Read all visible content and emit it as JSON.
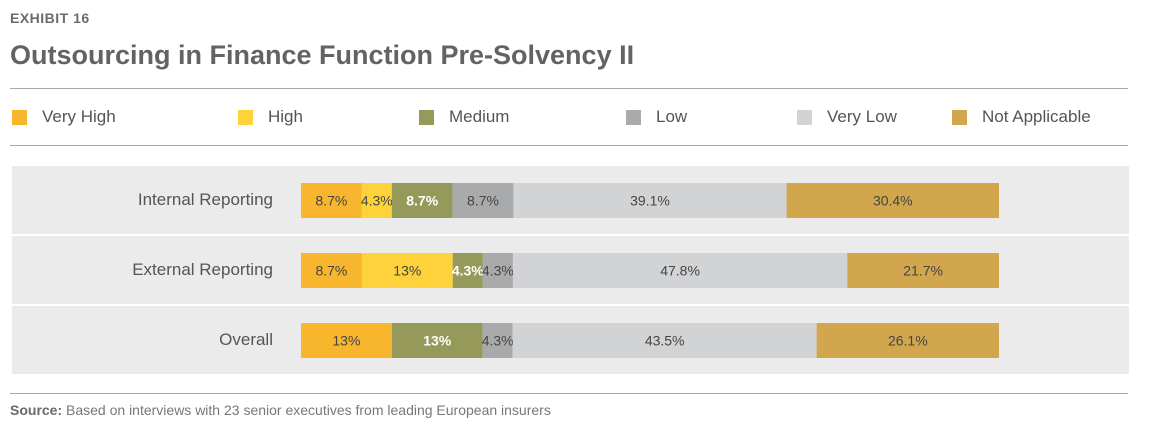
{
  "header": {
    "exhibit": "EXHIBIT 16",
    "title": "Outsourcing in Finance Function Pre-Solvency II"
  },
  "legend": [
    {
      "label": "Very High",
      "color": "#f8b52e"
    },
    {
      "label": "High",
      "color": "#fdd23b"
    },
    {
      "label": "Medium",
      "color": "#959a5a"
    },
    {
      "label": "Low",
      "color": "#a9aaac"
    },
    {
      "label": "Very Low",
      "color": "#d2d3d5"
    },
    {
      "label": "Not Applicable",
      "color": "#d2a64c"
    }
  ],
  "chart_data": {
    "type": "bar",
    "orientation": "horizontal",
    "stacked": true,
    "categories": [
      "Internal Reporting",
      "External Reporting",
      "Overall"
    ],
    "series": [
      {
        "name": "Very High",
        "values": [
          8.7,
          8.7,
          13
        ],
        "labels": [
          "8.7%",
          "8.7%",
          "13%"
        ]
      },
      {
        "name": "High",
        "values": [
          4.3,
          13,
          0
        ],
        "labels": [
          "4.3%",
          "13%",
          ""
        ]
      },
      {
        "name": "Medium",
        "values": [
          8.7,
          4.3,
          13
        ],
        "labels": [
          "8.7%",
          "4.3%",
          "13%"
        ]
      },
      {
        "name": "Low",
        "values": [
          8.7,
          4.3,
          4.3
        ],
        "labels": [
          "8.7%",
          "4.3%",
          "4.3%"
        ]
      },
      {
        "name": "Very Low",
        "values": [
          39.1,
          47.8,
          43.5
        ],
        "labels": [
          "39.1%",
          "47.8%",
          "43.5%"
        ]
      },
      {
        "name": "Not Applicable",
        "values": [
          30.4,
          21.7,
          26.1
        ],
        "labels": [
          "30.4%",
          "21.7%",
          "26.1%"
        ]
      }
    ],
    "xlim": [
      0,
      100
    ],
    "grid": false,
    "legend_position": "top"
  },
  "footer": {
    "source_label": "Source:",
    "source_text": " Based on interviews with 23 senior executives from leading European insurers"
  }
}
